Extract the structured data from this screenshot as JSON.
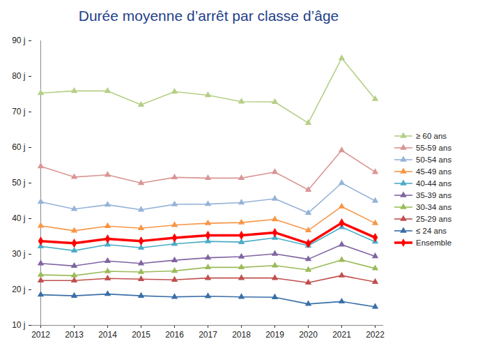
{
  "chart_data": {
    "type": "line",
    "title": "Durée moyenne d’arrêt par classe d’âge",
    "categories": [
      "2012",
      "2013",
      "2014",
      "2015",
      "2016",
      "2017",
      "2018",
      "2019",
      "2020",
      "2021",
      "2022"
    ],
    "ylim": [
      10,
      90
    ],
    "yticks": [
      {
        "value": 10,
        "label": "10 j"
      },
      {
        "value": 20,
        "label": "20 j"
      },
      {
        "value": 30,
        "label": "30 j"
      },
      {
        "value": 40,
        "label": "40 j"
      },
      {
        "value": 50,
        "label": "50 j"
      },
      {
        "value": 60,
        "label": "60 j"
      },
      {
        "value": 70,
        "label": "70 j"
      },
      {
        "value": 80,
        "label": "80 j"
      },
      {
        "value": 90,
        "label": "90 j"
      }
    ],
    "grid": false,
    "legend": "right",
    "series": [
      {
        "name": "≥ 60 ans",
        "color": "#b5cf86",
        "marker": "triangle",
        "line_style": "solid",
        "values": [
          75.3,
          75.9,
          75.9,
          72.0,
          75.7,
          74.7,
          72.9,
          72.8,
          66.9,
          85.1,
          73.6
        ]
      },
      {
        "name": "55-59 ans",
        "color": "#d99694",
        "marker": "triangle",
        "line_style": "solid",
        "values": [
          54.7,
          51.7,
          52.3,
          50.0,
          51.6,
          51.4,
          51.4,
          53.1,
          48.1,
          59.2,
          53.1
        ]
      },
      {
        "name": "50-54 ans",
        "color": "#95b3d7",
        "marker": "triangle",
        "line_style": "solid",
        "values": [
          44.7,
          42.7,
          43.9,
          42.5,
          44.0,
          44.1,
          44.5,
          45.6,
          41.6,
          50.0,
          45.0
        ]
      },
      {
        "name": "45-49 ans",
        "color": "#f79646",
        "marker": "triangle",
        "line_style": "solid",
        "values": [
          38.0,
          36.6,
          37.9,
          37.3,
          38.2,
          38.7,
          38.9,
          39.8,
          36.7,
          43.4,
          38.7
        ]
      },
      {
        "name": "40-44 ans",
        "color": "#4bacc6",
        "marker": "triangle",
        "line_style": "solid",
        "values": [
          32.2,
          31.0,
          32.7,
          31.8,
          32.9,
          33.6,
          33.4,
          34.6,
          32.4,
          37.6,
          33.5
        ]
      },
      {
        "name": "35-39 ans",
        "color": "#8064a2",
        "marker": "triangle",
        "line_style": "solid",
        "values": [
          27.4,
          26.7,
          28.1,
          27.4,
          28.3,
          29.0,
          29.3,
          30.1,
          28.6,
          32.7,
          29.4
        ]
      },
      {
        "name": "30-34 ans",
        "color": "#9bbb59",
        "marker": "triangle",
        "line_style": "solid",
        "values": [
          24.2,
          24.0,
          25.2,
          25.0,
          25.3,
          26.3,
          26.3,
          26.8,
          25.6,
          28.4,
          26.0
        ]
      },
      {
        "name": "25-29 ans",
        "color": "#c0504d",
        "marker": "triangle",
        "line_style": "solid",
        "values": [
          22.6,
          22.6,
          23.2,
          23.0,
          22.8,
          23.3,
          23.3,
          23.3,
          22.0,
          24.0,
          22.2
        ]
      },
      {
        "name": "≤ 24 ans",
        "color": "#3a6fa8",
        "marker": "triangle",
        "line_style": "solid",
        "values": [
          18.6,
          18.3,
          18.8,
          18.3,
          18.0,
          18.2,
          18.0,
          17.9,
          16.0,
          16.7,
          15.2
        ]
      },
      {
        "name": "Ensemble",
        "color": "#ff0000",
        "marker": "diamond",
        "line_style": "thick",
        "values": [
          33.7,
          33.1,
          34.3,
          33.7,
          34.6,
          35.3,
          35.3,
          36.1,
          33.0,
          38.8,
          34.7
        ]
      }
    ]
  }
}
